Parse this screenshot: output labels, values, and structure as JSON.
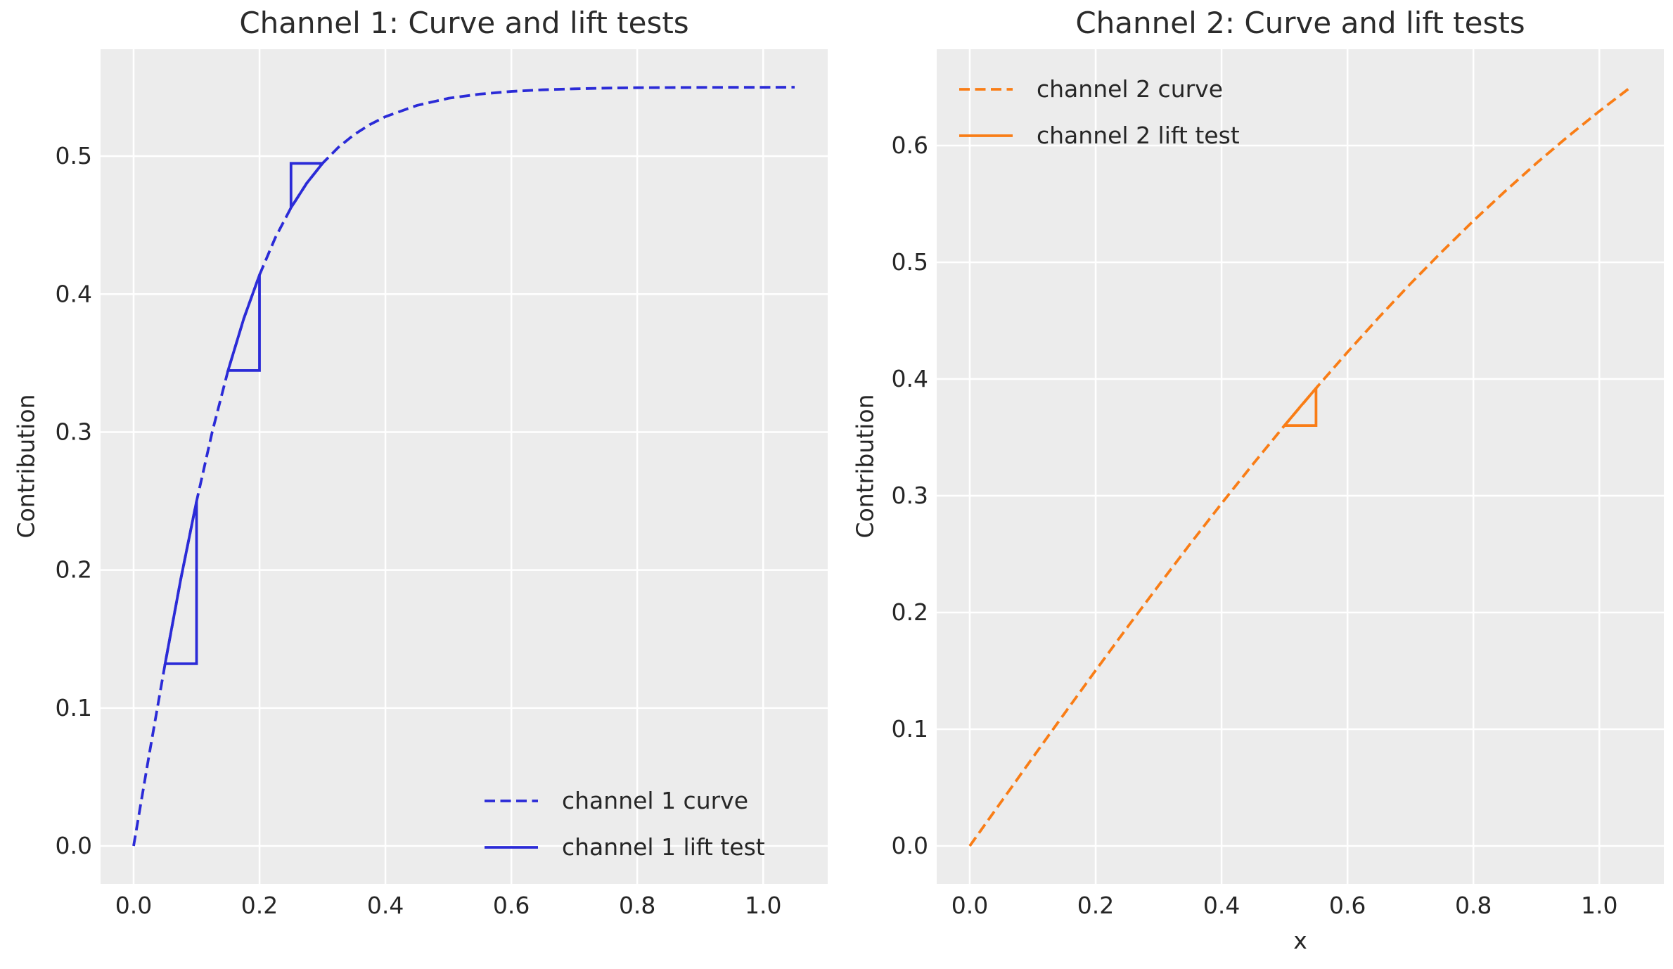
{
  "figure": {
    "background": "#ffffff",
    "axes_background": "#ececec",
    "grid_color": "#ffffff",
    "text_color": "#262626",
    "title_color": "#2b2b2b"
  },
  "chart_data": [
    {
      "type": "line",
      "title": "Channel 1: Curve and lift tests",
      "xlabel": "",
      "ylabel": "Contribution",
      "xlim": [
        -0.0525,
        1.1025
      ],
      "ylim": [
        -0.0275,
        0.5775
      ],
      "xticks": [
        0.0,
        0.2,
        0.4,
        0.6,
        0.8,
        1.0
      ],
      "yticks": [
        0.0,
        0.1,
        0.2,
        0.3,
        0.4,
        0.5
      ],
      "grid": true,
      "color": "#2b2bd7",
      "legend_position": "lower right",
      "series": [
        {
          "name": "channel 1 curve",
          "style": "dashed",
          "x": [
            0,
            0.025,
            0.05,
            0.075,
            0.1,
            0.125,
            0.15,
            0.175,
            0.2,
            0.225,
            0.25,
            0.275,
            0.3,
            0.325,
            0.35,
            0.375,
            0.4,
            0.45,
            0.5,
            0.55,
            0.6,
            0.65,
            0.7,
            0.75,
            0.8,
            0.85,
            0.9,
            0.95,
            1.0,
            1.05
          ],
          "y": [
            0,
            0.067,
            0.1321,
            0.1935,
            0.2498,
            0.3004,
            0.3446,
            0.3823,
            0.4139,
            0.4408,
            0.4626,
            0.4804,
            0.4948,
            0.5063,
            0.5155,
            0.5228,
            0.5286,
            0.5368,
            0.5419,
            0.545,
            0.5469,
            0.5481,
            0.5488,
            0.5493,
            0.5496,
            0.5497,
            0.5498,
            0.5499,
            0.5499,
            0.55
          ]
        },
        {
          "name": "channel 1 lift test",
          "style": "solid",
          "segments": [
            {
              "points": [
                [
                  0.05,
                  0.1321
                ],
                [
                  0.075,
                  0.1935
                ],
                [
                  0.1,
                  0.2498
                ]
              ],
              "corner": "lower-right"
            },
            {
              "points": [
                [
                  0.15,
                  0.3446
                ],
                [
                  0.175,
                  0.3823
                ],
                [
                  0.2,
                  0.4139
                ]
              ],
              "corner": "lower-right"
            },
            {
              "points": [
                [
                  0.25,
                  0.4626
                ],
                [
                  0.275,
                  0.4804
                ],
                [
                  0.3,
                  0.4948
                ]
              ],
              "corner": "upper-left"
            }
          ]
        }
      ]
    },
    {
      "type": "line",
      "title": "Channel 2: Curve and lift tests",
      "xlabel": "x",
      "ylabel": "Contribution",
      "xlim": [
        -0.0525,
        1.1025
      ],
      "ylim": [
        -0.0325,
        0.6825
      ],
      "xticks": [
        0.0,
        0.2,
        0.4,
        0.6,
        0.8,
        1.0
      ],
      "yticks": [
        0.0,
        0.1,
        0.2,
        0.3,
        0.4,
        0.5,
        0.6
      ],
      "grid": true,
      "color": "#f97d16",
      "legend_position": "upper left",
      "series": [
        {
          "name": "channel 2 curve",
          "style": "dashed",
          "x": [
            0,
            0.05,
            0.1,
            0.15,
            0.2,
            0.25,
            0.3,
            0.35,
            0.4,
            0.45,
            0.5,
            0.55,
            0.6,
            0.65,
            0.7,
            0.75,
            0.8,
            0.85,
            0.9,
            0.95,
            1.0,
            1.05
          ],
          "y": [
            0,
            0.0379,
            0.0757,
            0.1132,
            0.1504,
            0.1871,
            0.2232,
            0.2587,
            0.2934,
            0.3272,
            0.3602,
            0.3921,
            0.423,
            0.4529,
            0.4816,
            0.5091,
            0.5355,
            0.5607,
            0.5848,
            0.6077,
            0.6294,
            0.6501
          ]
        },
        {
          "name": "channel 2 lift test",
          "style": "solid",
          "segments": [
            {
              "points": [
                [
                  0.5,
                  0.3602
                ],
                [
                  0.525,
                  0.3763
                ],
                [
                  0.55,
                  0.3921
                ]
              ],
              "corner": "lower-right"
            }
          ]
        }
      ]
    }
  ]
}
